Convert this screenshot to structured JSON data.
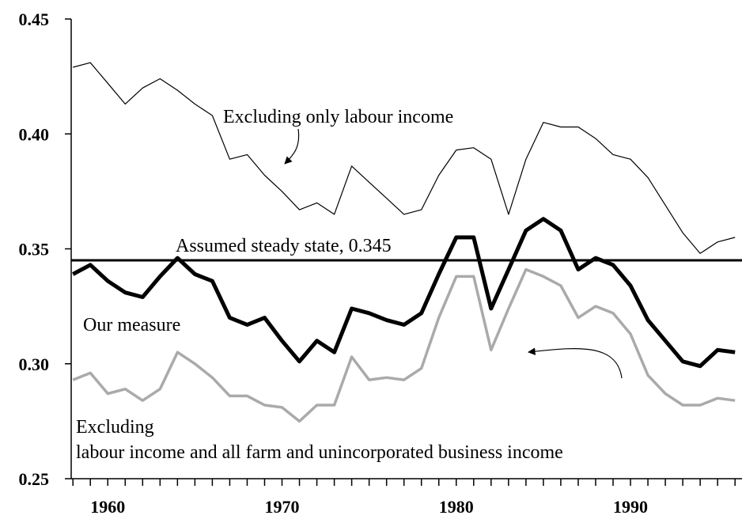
{
  "chart_data": {
    "type": "line",
    "x": [
      1958,
      1959,
      1960,
      1961,
      1962,
      1963,
      1964,
      1965,
      1966,
      1967,
      1968,
      1969,
      1970,
      1971,
      1972,
      1973,
      1974,
      1975,
      1976,
      1977,
      1978,
      1979,
      1980,
      1981,
      1982,
      1983,
      1984,
      1985,
      1986,
      1987,
      1988,
      1989,
      1990,
      1991,
      1992,
      1993,
      1994,
      1995,
      1996
    ],
    "series": [
      {
        "name": "Excluding only labour income",
        "color": "#000000",
        "width": 1.2,
        "values": [
          0.429,
          0.431,
          0.422,
          0.413,
          0.42,
          0.424,
          0.419,
          0.413,
          0.408,
          0.389,
          0.391,
          0.382,
          0.375,
          0.367,
          0.37,
          0.365,
          0.386,
          0.379,
          0.372,
          0.365,
          0.367,
          0.382,
          0.393,
          0.394,
          0.389,
          0.365,
          0.389,
          0.405,
          0.403,
          0.403,
          0.398,
          0.391,
          0.389,
          0.381,
          0.369,
          0.357,
          0.348,
          0.353,
          0.355
        ]
      },
      {
        "name": "Our measure",
        "color": "#000000",
        "width": 5,
        "values": [
          0.339,
          0.343,
          0.336,
          0.331,
          0.329,
          0.338,
          0.346,
          0.339,
          0.336,
          0.32,
          0.317,
          0.32,
          0.31,
          0.301,
          0.31,
          0.305,
          0.324,
          0.322,
          0.319,
          0.317,
          0.322,
          0.339,
          0.355,
          0.355,
          0.324,
          0.341,
          0.358,
          0.363,
          0.358,
          0.341,
          0.346,
          0.343,
          0.334,
          0.319,
          0.31,
          0.301,
          0.299,
          0.306,
          0.305
        ]
      },
      {
        "name": "Excluding labour income and all farm and unincorporated business income",
        "color": "#aaaaaa",
        "width": 3.5,
        "values": [
          0.293,
          0.296,
          0.287,
          0.289,
          0.284,
          0.289,
          0.305,
          0.3,
          0.294,
          0.286,
          0.286,
          0.282,
          0.281,
          0.275,
          0.282,
          0.282,
          0.303,
          0.293,
          0.294,
          0.293,
          0.298,
          0.32,
          0.338,
          0.338,
          0.306,
          0.324,
          0.341,
          0.338,
          0.334,
          0.32,
          0.325,
          0.322,
          0.313,
          0.295,
          0.287,
          0.282,
          0.282,
          0.285,
          0.284
        ]
      }
    ],
    "hline": 0.345,
    "annotations": [
      "Excluding only labour income",
      "Assumed steady state, 0.345",
      "Our measure",
      "Excluding",
      "labour income and all farm and unincorporated business income"
    ],
    "xlim": [
      1957.9,
      1996.4
    ],
    "xticks": [
      1960,
      1970,
      1980,
      1990
    ],
    "xminorticks": [
      1958,
      1959,
      1960,
      1961,
      1962,
      1963,
      1964,
      1965,
      1966,
      1967,
      1968,
      1969,
      1970,
      1971,
      1972,
      1973,
      1974,
      1975,
      1976,
      1977,
      1978,
      1979,
      1980,
      1981,
      1982,
      1983,
      1984,
      1985,
      1986,
      1987,
      1988,
      1989,
      1990,
      1991,
      1992,
      1993,
      1994,
      1995,
      1996
    ],
    "ylim": [
      0.25,
      0.45
    ],
    "yticks": [
      {
        "value": 0.25,
        "label": "0.25"
      },
      {
        "value": 0.3,
        "label": "0.30"
      },
      {
        "value": 0.35,
        "label": "0.35"
      },
      {
        "value": 0.4,
        "label": "0.40"
      },
      {
        "value": 0.45,
        "label": "0.45"
      }
    ]
  }
}
